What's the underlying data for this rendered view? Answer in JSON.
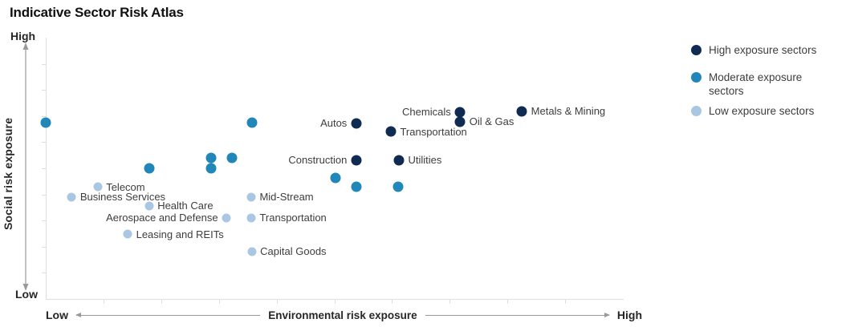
{
  "title": "Indicative Sector Risk Atlas",
  "axes": {
    "y_title": "Social risk exposure",
    "y_max_label": "High",
    "y_min_label": "Low",
    "x_title": "Environmental risk exposure",
    "x_min_label": "Low",
    "x_max_label": "High"
  },
  "legend": [
    {
      "label": "High exposure sectors",
      "color": "#0f2b52"
    },
    {
      "label": "Moderate exposure sectors",
      "color": "#2186b8"
    },
    {
      "label": "Low exposure sectors",
      "color": "#a9c7e2"
    }
  ],
  "colors": {
    "high": "#0f2b52",
    "moderate": "#2186b8",
    "low": "#a9c7e2",
    "label_text": "#3d3d3d",
    "axis_line": "#dedede",
    "arrow": "#9a9a9a"
  },
  "chart_data": {
    "type": "scatter",
    "title": "Indicative Sector Risk Atlas",
    "xlabel": "Environmental risk exposure",
    "ylabel": "Social risk exposure",
    "x_range_labels": [
      "Low",
      "High"
    ],
    "y_range_labels": [
      "Low",
      "High"
    ],
    "axis_note": "Qualitative axes; point coordinates estimated on a 0-100 Low-to-High scale",
    "legend_position": "right",
    "grid": false,
    "series": [
      {
        "key": "high",
        "name": "High exposure sectors",
        "color": "#0f2b52",
        "points": [
          {
            "label": "Autos",
            "x": 53.8,
            "y": 67.2,
            "label_side": "left"
          },
          {
            "label": "Chemicals",
            "x": 71.8,
            "y": 71.5,
            "label_side": "left"
          },
          {
            "label": "Oil & Gas",
            "x": 71.8,
            "y": 67.8,
            "label_side": "right"
          },
          {
            "label": "Transportation",
            "x": 59.8,
            "y": 64.1,
            "label_side": "right"
          },
          {
            "label": "Metals & Mining",
            "x": 82.5,
            "y": 71.8,
            "label_side": "right"
          },
          {
            "label": "Construction",
            "x": 53.8,
            "y": 53.1,
            "label_side": "left"
          },
          {
            "label": "Utilities",
            "x": 61.2,
            "y": 53.1,
            "label_side": "right"
          }
        ]
      },
      {
        "key": "moderate",
        "name": "Moderate exposure sectors",
        "color": "#2186b8",
        "points": [
          {
            "x": 0.0,
            "y": 67.5
          },
          {
            "x": 35.7,
            "y": 67.5
          },
          {
            "x": 17.9,
            "y": 50.0
          },
          {
            "x": 28.7,
            "y": 54.0
          },
          {
            "x": 28.7,
            "y": 50.0
          },
          {
            "x": 32.3,
            "y": 54.0
          },
          {
            "x": 50.2,
            "y": 46.3
          },
          {
            "x": 53.8,
            "y": 42.9
          },
          {
            "x": 61.1,
            "y": 42.9
          }
        ]
      },
      {
        "key": "low",
        "name": "Low exposure sectors",
        "color": "#a9c7e2",
        "points": [
          {
            "label": "Telecom",
            "x": 9.0,
            "y": 42.9,
            "label_side": "right"
          },
          {
            "label": "Business Services",
            "x": 4.5,
            "y": 39.0,
            "label_side": "right"
          },
          {
            "label": "Health Care",
            "x": 17.9,
            "y": 35.6,
            "label_side": "right"
          },
          {
            "label": "Aerospace and Defense",
            "x": 31.3,
            "y": 31.0,
            "label_side": "left"
          },
          {
            "label": "Leasing and REITs",
            "x": 14.2,
            "y": 24.8,
            "label_side": "right"
          },
          {
            "label": "Mid-Stream",
            "x": 35.6,
            "y": 39.0,
            "label_side": "right"
          },
          {
            "label": "Transportation",
            "x": 35.6,
            "y": 31.0,
            "label_side": "right"
          },
          {
            "label": "Capital Goods",
            "x": 35.7,
            "y": 18.1,
            "label_side": "right"
          }
        ]
      }
    ]
  }
}
